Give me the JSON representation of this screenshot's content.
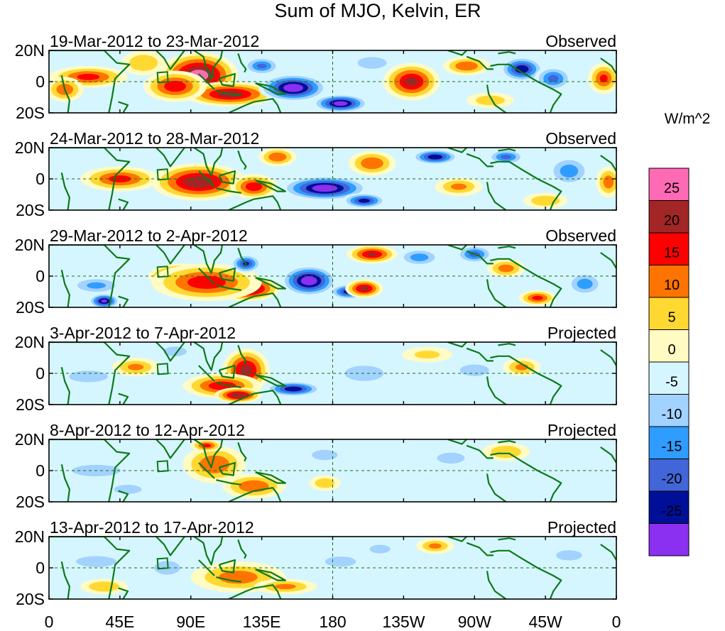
{
  "chart_data": {
    "type": "heatmap",
    "title": "Sum of MJO, Kelvin, ER",
    "colorbar": {
      "units": "W/m^2",
      "ticks": [
        "25",
        "20",
        "15",
        "10",
        "5",
        "0",
        "-5",
        "-10",
        "-15",
        "-20",
        "-25"
      ],
      "levels": [
        25,
        20,
        15,
        10,
        5,
        0,
        -5,
        -10,
        -15,
        -20,
        -25
      ],
      "colors": [
        "#ff6ab4",
        "#a12625",
        "#fe0000",
        "#ff7400",
        "#ffd931",
        "#fffbc2",
        "#d6f6ff",
        "#a2d2ff",
        "#2f9dff",
        "#4265d8",
        "#000f98",
        "#8b2ff0"
      ]
    },
    "x_ticks": [
      "0",
      "45E",
      "90E",
      "135E",
      "180",
      "135W",
      "90W",
      "45W",
      "0"
    ],
    "x_values": [
      0,
      45,
      90,
      135,
      180,
      225,
      270,
      315,
      360
    ],
    "y_ticks": [
      "20N",
      "0",
      "20S"
    ],
    "y_values": [
      20,
      0,
      -20
    ],
    "panels": [
      {
        "period": "19-Mar-2012 to 23-Mar-2012",
        "label": "Observed",
        "blobs": [
          {
            "lon": 95,
            "lat": 4,
            "rx": 25,
            "ry": 15,
            "v": 28
          },
          {
            "lon": 115,
            "lat": -8,
            "rx": 30,
            "ry": 8,
            "v": 22
          },
          {
            "lon": 80,
            "lat": -3,
            "rx": 20,
            "ry": 10,
            "v": 18
          },
          {
            "lon": 25,
            "lat": 3,
            "rx": 25,
            "ry": 7,
            "v": 16
          },
          {
            "lon": 10,
            "lat": -5,
            "rx": 12,
            "ry": 8,
            "v": 13
          },
          {
            "lon": 60,
            "lat": 12,
            "rx": 14,
            "ry": 8,
            "v": 9
          },
          {
            "lon": 155,
            "lat": -4,
            "rx": 22,
            "ry": 9,
            "v": -30
          },
          {
            "lon": 185,
            "lat": -14,
            "rx": 18,
            "ry": 6,
            "v": -28
          },
          {
            "lon": 135,
            "lat": 10,
            "rx": 12,
            "ry": 6,
            "v": -15
          },
          {
            "lon": 230,
            "lat": 0,
            "rx": 18,
            "ry": 12,
            "v": 21
          },
          {
            "lon": 265,
            "lat": 10,
            "rx": 15,
            "ry": 6,
            "v": 14
          },
          {
            "lon": 300,
            "lat": 8,
            "rx": 14,
            "ry": 8,
            "v": -24
          },
          {
            "lon": 320,
            "lat": 2,
            "rx": 12,
            "ry": 8,
            "v": -16
          },
          {
            "lon": 352,
            "lat": 2,
            "rx": 10,
            "ry": 10,
            "v": 15
          },
          {
            "lon": 205,
            "lat": 12,
            "rx": 15,
            "ry": 6,
            "v": -8
          },
          {
            "lon": 280,
            "lat": -12,
            "rx": 15,
            "ry": 5,
            "v": 8
          }
        ]
      },
      {
        "period": "24-Mar-2012 to 28-Mar-2012",
        "label": "Observed",
        "blobs": [
          {
            "lon": 95,
            "lat": -2,
            "rx": 30,
            "ry": 12,
            "v": 24
          },
          {
            "lon": 45,
            "lat": 0,
            "rx": 25,
            "ry": 8,
            "v": 16
          },
          {
            "lon": 130,
            "lat": -5,
            "rx": 15,
            "ry": 8,
            "v": 18
          },
          {
            "lon": 175,
            "lat": -6,
            "rx": 28,
            "ry": 8,
            "v": -30
          },
          {
            "lon": 200,
            "lat": -14,
            "rx": 14,
            "ry": 5,
            "v": -22
          },
          {
            "lon": 145,
            "lat": 14,
            "rx": 12,
            "ry": 6,
            "v": 14
          },
          {
            "lon": 205,
            "lat": 10,
            "rx": 15,
            "ry": 8,
            "v": 14
          },
          {
            "lon": 245,
            "lat": 14,
            "rx": 15,
            "ry": 5,
            "v": -24
          },
          {
            "lon": 260,
            "lat": -5,
            "rx": 15,
            "ry": 6,
            "v": 10
          },
          {
            "lon": 290,
            "lat": 14,
            "rx": 12,
            "ry": 5,
            "v": -16
          },
          {
            "lon": 330,
            "lat": 5,
            "rx": 14,
            "ry": 10,
            "v": -12
          },
          {
            "lon": 315,
            "lat": -14,
            "rx": 14,
            "ry": 5,
            "v": 9
          },
          {
            "lon": 355,
            "lat": -2,
            "rx": 8,
            "ry": 10,
            "v": 12
          }
        ]
      },
      {
        "period": "29-Mar-2012 to 2-Apr-2012",
        "label": "Observed",
        "blobs": [
          {
            "lon": 85,
            "lat": 0,
            "rx": 22,
            "ry": 8,
            "v": 28
          },
          {
            "lon": 125,
            "lat": -8,
            "rx": 22,
            "ry": 8,
            "v": 28
          },
          {
            "lon": 100,
            "lat": -4,
            "rx": 35,
            "ry": 12,
            "v": 18
          },
          {
            "lon": 165,
            "lat": -3,
            "rx": 18,
            "ry": 10,
            "v": -30
          },
          {
            "lon": 190,
            "lat": -10,
            "rx": 12,
            "ry": 5,
            "v": -22
          },
          {
            "lon": 35,
            "lat": -16,
            "rx": 10,
            "ry": 5,
            "v": -26
          },
          {
            "lon": 30,
            "lat": -6,
            "rx": 18,
            "ry": 6,
            "v": -10
          },
          {
            "lon": 125,
            "lat": 8,
            "rx": 10,
            "ry": 6,
            "v": -20
          },
          {
            "lon": 205,
            "lat": 14,
            "rx": 16,
            "ry": 6,
            "v": 20
          },
          {
            "lon": 200,
            "lat": -8,
            "rx": 12,
            "ry": 6,
            "v": 22
          },
          {
            "lon": 235,
            "lat": 12,
            "rx": 14,
            "ry": 6,
            "v": -12
          },
          {
            "lon": 270,
            "lat": 14,
            "rx": 12,
            "ry": 6,
            "v": -16
          },
          {
            "lon": 290,
            "lat": 5,
            "rx": 12,
            "ry": 6,
            "v": 12
          },
          {
            "lon": 310,
            "lat": -14,
            "rx": 12,
            "ry": 5,
            "v": 16
          },
          {
            "lon": 340,
            "lat": -5,
            "rx": 12,
            "ry": 8,
            "v": -12
          }
        ]
      },
      {
        "period": "3-Apr-2012 to 7-Apr-2012",
        "label": "Projected",
        "blobs": [
          {
            "lon": 125,
            "lat": 2,
            "rx": 15,
            "ry": 14,
            "v": 22
          },
          {
            "lon": 110,
            "lat": -8,
            "rx": 25,
            "ry": 8,
            "v": 18
          },
          {
            "lon": 120,
            "lat": -14,
            "rx": 15,
            "ry": 5,
            "v": 24
          },
          {
            "lon": 55,
            "lat": 4,
            "rx": 15,
            "ry": 6,
            "v": 10
          },
          {
            "lon": 25,
            "lat": -2,
            "rx": 20,
            "ry": 6,
            "v": -8
          },
          {
            "lon": 155,
            "lat": -10,
            "rx": 18,
            "ry": 5,
            "v": -24
          },
          {
            "lon": 80,
            "lat": 14,
            "rx": 12,
            "ry": 5,
            "v": -8
          },
          {
            "lon": 200,
            "lat": 0,
            "rx": 20,
            "ry": 8,
            "v": -8
          },
          {
            "lon": 270,
            "lat": 2,
            "rx": 15,
            "ry": 6,
            "v": -8
          },
          {
            "lon": 300,
            "lat": 4,
            "rx": 12,
            "ry": 6,
            "v": 10
          },
          {
            "lon": 240,
            "lat": 12,
            "rx": 16,
            "ry": 5,
            "v": 5
          }
        ]
      },
      {
        "period": "8-Apr-2012 to 12-Apr-2012",
        "label": "Projected",
        "blobs": [
          {
            "lon": 105,
            "lat": 4,
            "rx": 20,
            "ry": 12,
            "v": 14
          },
          {
            "lon": 130,
            "lat": -10,
            "rx": 20,
            "ry": 8,
            "v": 14
          },
          {
            "lon": 100,
            "lat": 16,
            "rx": 10,
            "ry": 4,
            "v": 16
          },
          {
            "lon": 30,
            "lat": 0,
            "rx": 25,
            "ry": 6,
            "v": -8
          },
          {
            "lon": 50,
            "lat": -12,
            "rx": 15,
            "ry": 5,
            "v": -7
          },
          {
            "lon": 175,
            "lat": 10,
            "rx": 15,
            "ry": 6,
            "v": -6
          },
          {
            "lon": 255,
            "lat": 8,
            "rx": 15,
            "ry": 6,
            "v": -7
          },
          {
            "lon": 290,
            "lat": 12,
            "rx": 15,
            "ry": 6,
            "v": 9
          },
          {
            "lon": 175,
            "lat": -8,
            "rx": 10,
            "ry": 5,
            "v": 8
          }
        ]
      },
      {
        "period": "13-Apr-2012 to 17-Apr-2012",
        "label": "Projected",
        "blobs": [
          {
            "lon": 120,
            "lat": -6,
            "rx": 30,
            "ry": 10,
            "v": 12
          },
          {
            "lon": 150,
            "lat": -12,
            "rx": 20,
            "ry": 5,
            "v": 10
          },
          {
            "lon": 35,
            "lat": -12,
            "rx": 15,
            "ry": 5,
            "v": 9
          },
          {
            "lon": 30,
            "lat": 4,
            "rx": 22,
            "ry": 6,
            "v": -7
          },
          {
            "lon": 75,
            "lat": 0,
            "rx": 15,
            "ry": 8,
            "v": -6
          },
          {
            "lon": 185,
            "lat": 4,
            "rx": 18,
            "ry": 6,
            "v": -6
          },
          {
            "lon": 245,
            "lat": 14,
            "rx": 12,
            "ry": 5,
            "v": 10
          },
          {
            "lon": 210,
            "lat": 12,
            "rx": 12,
            "ry": 5,
            "v": -6
          },
          {
            "lon": 330,
            "lat": 8,
            "rx": 15,
            "ry": 6,
            "v": -6
          }
        ]
      }
    ]
  }
}
